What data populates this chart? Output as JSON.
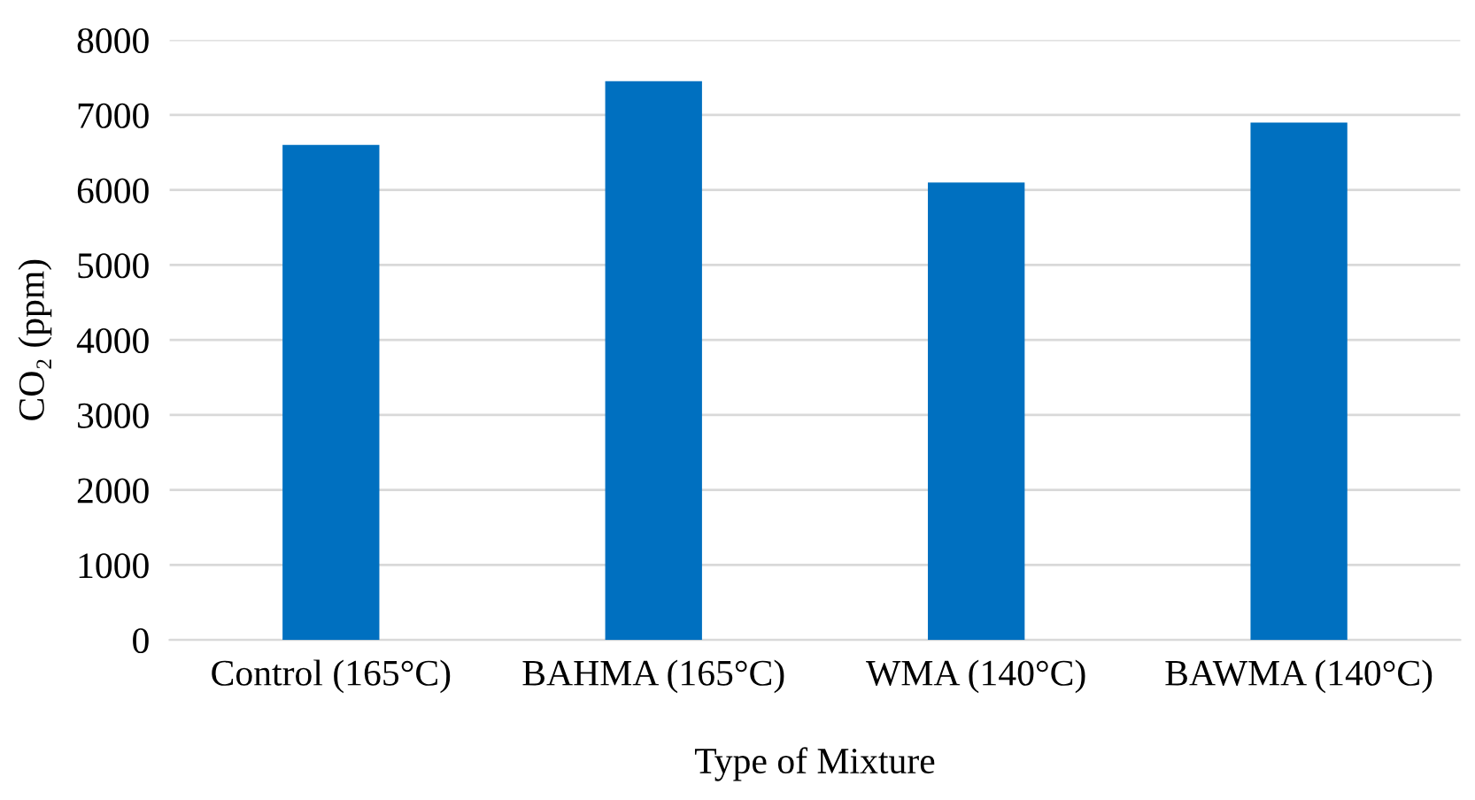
{
  "chart_data": {
    "type": "bar",
    "xlabel": "Type of Mixture",
    "ylabel": "CO₂ (ppm)",
    "categories": [
      "Control (165°C)",
      "BAHMA (165°C)",
      "WMA (140°C)",
      "BAWMA (140°C)"
    ],
    "values": [
      6600,
      7450,
      6100,
      6900
    ],
    "color": "#0070c0",
    "ylim": [
      0,
      8000
    ],
    "yticks": [
      0,
      1000,
      2000,
      3000,
      4000,
      5000,
      6000,
      7000,
      8000
    ],
    "grid": "y"
  }
}
